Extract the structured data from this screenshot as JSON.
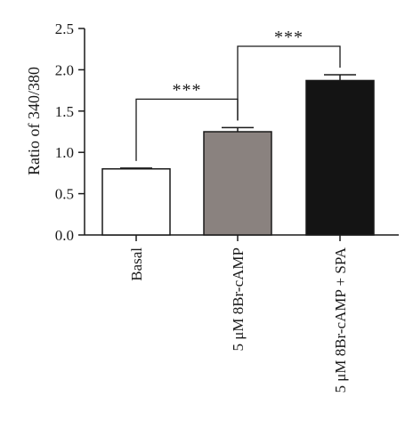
{
  "chart_data": {
    "type": "bar",
    "title": "",
    "xlabel": "",
    "ylabel": "Ratio of 340/380",
    "ylim": [
      0,
      2.5
    ],
    "yticks": [
      "0.0",
      "0.5",
      "1.0",
      "1.5",
      "2.0",
      "2.5"
    ],
    "categories": [
      "Basal",
      "5 μM 8Br-cAMP",
      "5 μM 8Br-cAMP + SPA"
    ],
    "values": [
      0.8,
      1.25,
      1.87
    ],
    "errors": [
      0.01,
      0.05,
      0.07
    ],
    "bar_colors": [
      "#ffffff",
      "#8a827f",
      "#141414"
    ],
    "grid": false,
    "legend": "none",
    "significance": [
      {
        "from": 0,
        "to": 1,
        "label": "***"
      },
      {
        "from": 1,
        "to": 2,
        "label": "***"
      }
    ]
  }
}
